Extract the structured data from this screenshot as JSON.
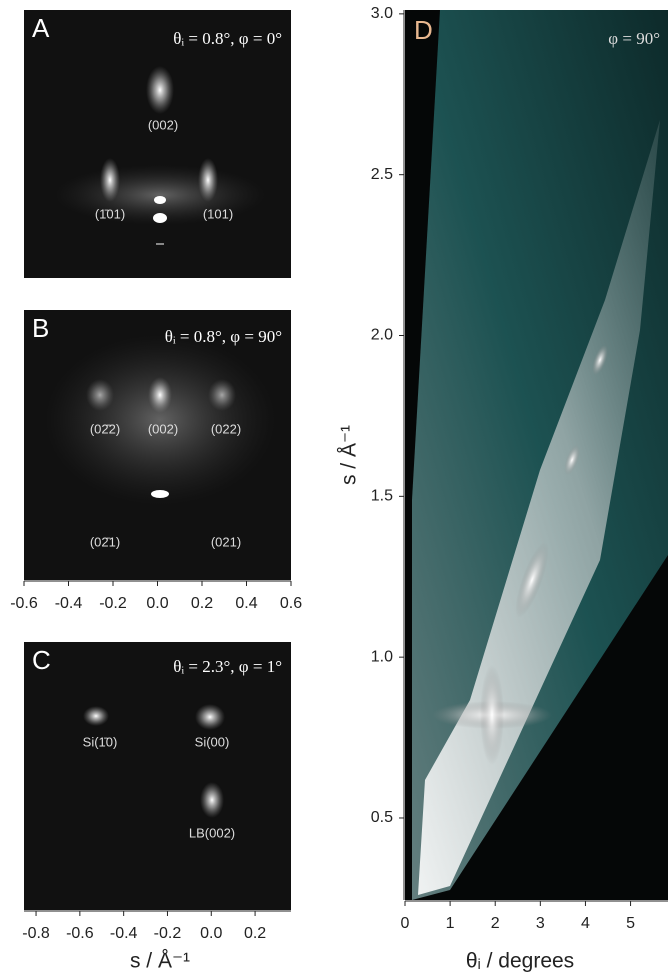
{
  "chart_data": [
    {
      "type": "image",
      "panel_label": "A",
      "annotation": "θᵢ = 0.8°, φ = 0°",
      "peak_labels": [
        "(002)",
        "(1̄01)",
        "(101)"
      ]
    },
    {
      "type": "image",
      "panel_label": "B",
      "annotation": "θᵢ = 0.8°, φ = 90°",
      "peak_labels": [
        "(02̄2)",
        "(002)",
        "(022)",
        "(02̄1)",
        "(021)"
      ],
      "xlim": [
        -0.6,
        0.6
      ],
      "xticks": [
        -0.6,
        -0.4,
        -0.2,
        {
          "value": 0,
          "label": "0.0"
        },
        0.2,
        0.4,
        0.6
      ]
    },
    {
      "type": "image",
      "panel_label": "C",
      "annotation": "θᵢ = 2.3°, φ = 1°",
      "peak_labels": [
        "Si(1̄0)",
        "Si(00)",
        "LB(002)"
      ],
      "xlim": [
        -0.855,
        0.364
      ],
      "xticks": [
        -0.8,
        -0.6,
        -0.4,
        -0.2,
        {
          "value": 0,
          "label": "0.0"
        },
        0.2
      ],
      "x_label": "s / Å⁻¹"
    },
    {
      "type": "image",
      "panel_label": "D",
      "annotation": "φ = 90°",
      "xlim": [
        0,
        5.83
      ],
      "xticks": [
        0,
        1,
        2,
        3,
        4,
        5
      ],
      "ylim": [
        0.245,
        3.012
      ],
      "yticks": [
        0.5,
        {
          "value": 1,
          "label": "1.0"
        },
        1.5,
        {
          "value": 2,
          "label": "2.0"
        },
        2.5,
        {
          "value": 3,
          "label": "3.0"
        }
      ],
      "x_label": "θᵢ / degrees",
      "y_label": "s / Å⁻¹"
    }
  ]
}
